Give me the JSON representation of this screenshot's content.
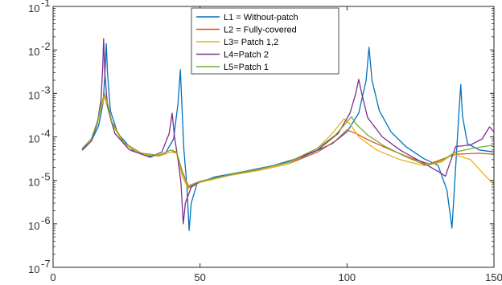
{
  "chart_data": {
    "type": "line",
    "title": "",
    "xlabel": "",
    "ylabel": "",
    "xlim": [
      0,
      150
    ],
    "ylim": [
      1e-07,
      0.1
    ],
    "yscale": "log",
    "grid": false,
    "legend_position": "top-center",
    "x_ticks": [
      {
        "value": 0,
        "label": "0"
      },
      {
        "value": 50,
        "label": "50"
      },
      {
        "value": 100,
        "label": "100"
      },
      {
        "value": 150,
        "label": "150"
      }
    ],
    "y_ticks": [
      {
        "value": 1e-07,
        "base": "10",
        "exp": "-7"
      },
      {
        "value": 1e-06,
        "base": "10",
        "exp": "-6"
      },
      {
        "value": 1e-05,
        "base": "10",
        "exp": "-5"
      },
      {
        "value": 0.0001,
        "base": "10",
        "exp": "-4"
      },
      {
        "value": 0.001,
        "base": "10",
        "exp": "-3"
      },
      {
        "value": 0.01,
        "base": "10",
        "exp": "-2"
      },
      {
        "value": 0.1,
        "base": "10",
        "exp": "-1"
      }
    ],
    "series": [
      {
        "name": "L1 = Without-patch",
        "color": "#0072BD",
        "points": [
          [
            10,
            5.2e-05
          ],
          [
            13,
            8e-05
          ],
          [
            15.5,
            0.00018
          ],
          [
            17,
            0.0006
          ],
          [
            17.6,
            0.0025
          ],
          [
            18.1,
            0.014
          ],
          [
            18.5,
            0.003
          ],
          [
            19.5,
            0.0004
          ],
          [
            22,
            0.00012
          ],
          [
            27,
            5e-05
          ],
          [
            33,
            3.6e-05
          ],
          [
            38,
            4e-05
          ],
          [
            41,
            9e-05
          ],
          [
            42.5,
            0.0006
          ],
          [
            43.3,
            0.0035
          ],
          [
            43.9,
            0.0004
          ],
          [
            44.5,
            5e-05
          ],
          [
            45.5,
            8e-06
          ],
          [
            46.3,
            7e-07
          ],
          [
            47,
            3e-06
          ],
          [
            49,
            8.5e-06
          ],
          [
            55,
            1.2e-05
          ],
          [
            65,
            1.6e-05
          ],
          [
            75,
            2.2e-05
          ],
          [
            85,
            3.5e-05
          ],
          [
            95,
            7e-05
          ],
          [
            100,
            0.00013
          ],
          [
            104,
            0.00035
          ],
          [
            106.5,
            0.002
          ],
          [
            107.5,
            0.0115
          ],
          [
            108.5,
            0.002
          ],
          [
            111,
            0.0004
          ],
          [
            115,
            0.00013
          ],
          [
            120,
            6e-05
          ],
          [
            126,
            3.2e-05
          ],
          [
            131,
            2.2e-05
          ],
          [
            134,
            6e-06
          ],
          [
            135.7,
            8e-07
          ],
          [
            136.5,
            6e-06
          ],
          [
            138,
            0.0003
          ],
          [
            138.7,
            0.0016
          ],
          [
            139.3,
            0.0003
          ],
          [
            141,
            7e-05
          ],
          [
            145,
            5e-05
          ],
          [
            150,
            4.5e-05
          ]
        ]
      },
      {
        "name": "L2 = Fully-covered",
        "color": "#D95319",
        "points": [
          [
            10,
            5e-05
          ],
          [
            13,
            8e-05
          ],
          [
            15,
            0.0002
          ],
          [
            16.5,
            0.0005
          ],
          [
            17.5,
            0.00085
          ],
          [
            18.5,
            0.0005
          ],
          [
            20,
            0.0002
          ],
          [
            24,
            7e-05
          ],
          [
            30,
            4e-05
          ],
          [
            36,
            3.6e-05
          ],
          [
            40,
            4.5e-05
          ],
          [
            42,
            4.5e-05
          ],
          [
            44,
            1.5e-05
          ],
          [
            46,
            7e-06
          ],
          [
            50,
            9e-06
          ],
          [
            60,
            1.3e-05
          ],
          [
            70,
            1.7e-05
          ],
          [
            80,
            2.4e-05
          ],
          [
            90,
            4.5e-05
          ],
          [
            96,
            8e-05
          ],
          [
            100,
            0.000145
          ],
          [
            103,
            0.00012
          ],
          [
            108,
            8e-05
          ],
          [
            115,
            5e-05
          ],
          [
            122,
            3.2e-05
          ],
          [
            128,
            2.4e-05
          ],
          [
            132,
            3e-05
          ],
          [
            137,
            4e-05
          ],
          [
            145,
            4.2e-05
          ],
          [
            150,
            4e-05
          ]
        ]
      },
      {
        "name": "L3= Patch 1,2",
        "color": "#EDB120",
        "points": [
          [
            10,
            5e-05
          ],
          [
            13,
            8e-05
          ],
          [
            15,
            0.0002
          ],
          [
            16.5,
            0.0005
          ],
          [
            17.5,
            0.00082
          ],
          [
            18.5,
            0.0005
          ],
          [
            20,
            0.0002
          ],
          [
            24,
            7e-05
          ],
          [
            30,
            4e-05
          ],
          [
            36,
            3.6e-05
          ],
          [
            40,
            4.5e-05
          ],
          [
            42,
            4.2e-05
          ],
          [
            44,
            1.2e-05
          ],
          [
            46,
            6.5e-06
          ],
          [
            50,
            9e-06
          ],
          [
            60,
            1.3e-05
          ],
          [
            70,
            1.7e-05
          ],
          [
            80,
            2.4e-05
          ],
          [
            90,
            5.5e-05
          ],
          [
            95,
            0.00012
          ],
          [
            99,
            0.00026
          ],
          [
            101,
            0.0002
          ],
          [
            104,
            0.0001
          ],
          [
            110,
            5e-05
          ],
          [
            118,
            3e-05
          ],
          [
            126,
            2.2e-05
          ],
          [
            132,
            2.6e-05
          ],
          [
            136,
            4e-05
          ],
          [
            142,
            3e-05
          ],
          [
            146,
            1.5e-05
          ],
          [
            150,
            8e-06
          ]
        ]
      },
      {
        "name": "L4=Patch 2",
        "color": "#7E2F8E",
        "points": [
          [
            10,
            5e-05
          ],
          [
            13,
            8e-05
          ],
          [
            15,
            0.0002
          ],
          [
            16.3,
            0.0007
          ],
          [
            16.9,
            0.004
          ],
          [
            17.2,
            0.018
          ],
          [
            17.6,
            0.003
          ],
          [
            18.5,
            0.0005
          ],
          [
            21,
            0.00012
          ],
          [
            26,
            5e-05
          ],
          [
            33,
            3.4e-05
          ],
          [
            37,
            4.5e-05
          ],
          [
            39.5,
            0.00012
          ],
          [
            40.5,
            0.00035
          ],
          [
            41.3,
            0.0001
          ],
          [
            42.5,
            3e-05
          ],
          [
            43.5,
            9e-06
          ],
          [
            44.3,
            1e-06
          ],
          [
            45,
            3e-06
          ],
          [
            47,
            7e-06
          ],
          [
            50,
            9.5e-06
          ],
          [
            60,
            1.35e-05
          ],
          [
            70,
            1.8e-05
          ],
          [
            80,
            2.6e-05
          ],
          [
            90,
            5e-05
          ],
          [
            97,
            0.00012
          ],
          [
            101,
            0.00035
          ],
          [
            103,
            0.001
          ],
          [
            104,
            0.0021
          ],
          [
            105,
            0.001
          ],
          [
            107,
            0.00028
          ],
          [
            112,
            0.0001
          ],
          [
            118,
            5e-05
          ],
          [
            126,
            2.5e-05
          ],
          [
            131,
            1.6e-05
          ],
          [
            133.5,
            1.25e-05
          ],
          [
            135,
            2.5e-05
          ],
          [
            137,
            6e-05
          ],
          [
            142,
            6.5e-05
          ],
          [
            146,
            9e-05
          ],
          [
            148.5,
            0.00017
          ],
          [
            150,
            0.00013
          ]
        ]
      },
      {
        "name": "L5=Patch 1",
        "color": "#77AC30",
        "points": [
          [
            10,
            5.5e-05
          ],
          [
            13,
            9e-05
          ],
          [
            15,
            0.00022
          ],
          [
            16.5,
            0.0006
          ],
          [
            17.5,
            0.001
          ],
          [
            18.5,
            0.0006
          ],
          [
            20,
            0.00022
          ],
          [
            24,
            7.5e-05
          ],
          [
            30,
            4.2e-05
          ],
          [
            36,
            3.8e-05
          ],
          [
            40,
            5e-05
          ],
          [
            42,
            4.5e-05
          ],
          [
            44,
            1.6e-05
          ],
          [
            46,
            7.5e-06
          ],
          [
            50,
            9.5e-06
          ],
          [
            60,
            1.35e-05
          ],
          [
            70,
            1.8e-05
          ],
          [
            80,
            2.6e-05
          ],
          [
            90,
            5.5e-05
          ],
          [
            96,
            0.00011
          ],
          [
            100,
            0.00022
          ],
          [
            101.5,
            0.00029
          ],
          [
            103,
            0.0002
          ],
          [
            107,
            0.00011
          ],
          [
            113,
            6e-05
          ],
          [
            120,
            3.5e-05
          ],
          [
            127,
            2.2e-05
          ],
          [
            132,
            2.8e-05
          ],
          [
            137,
            4.5e-05
          ],
          [
            143,
            5.5e-05
          ],
          [
            150,
            6.5e-05
          ]
        ]
      }
    ]
  }
}
